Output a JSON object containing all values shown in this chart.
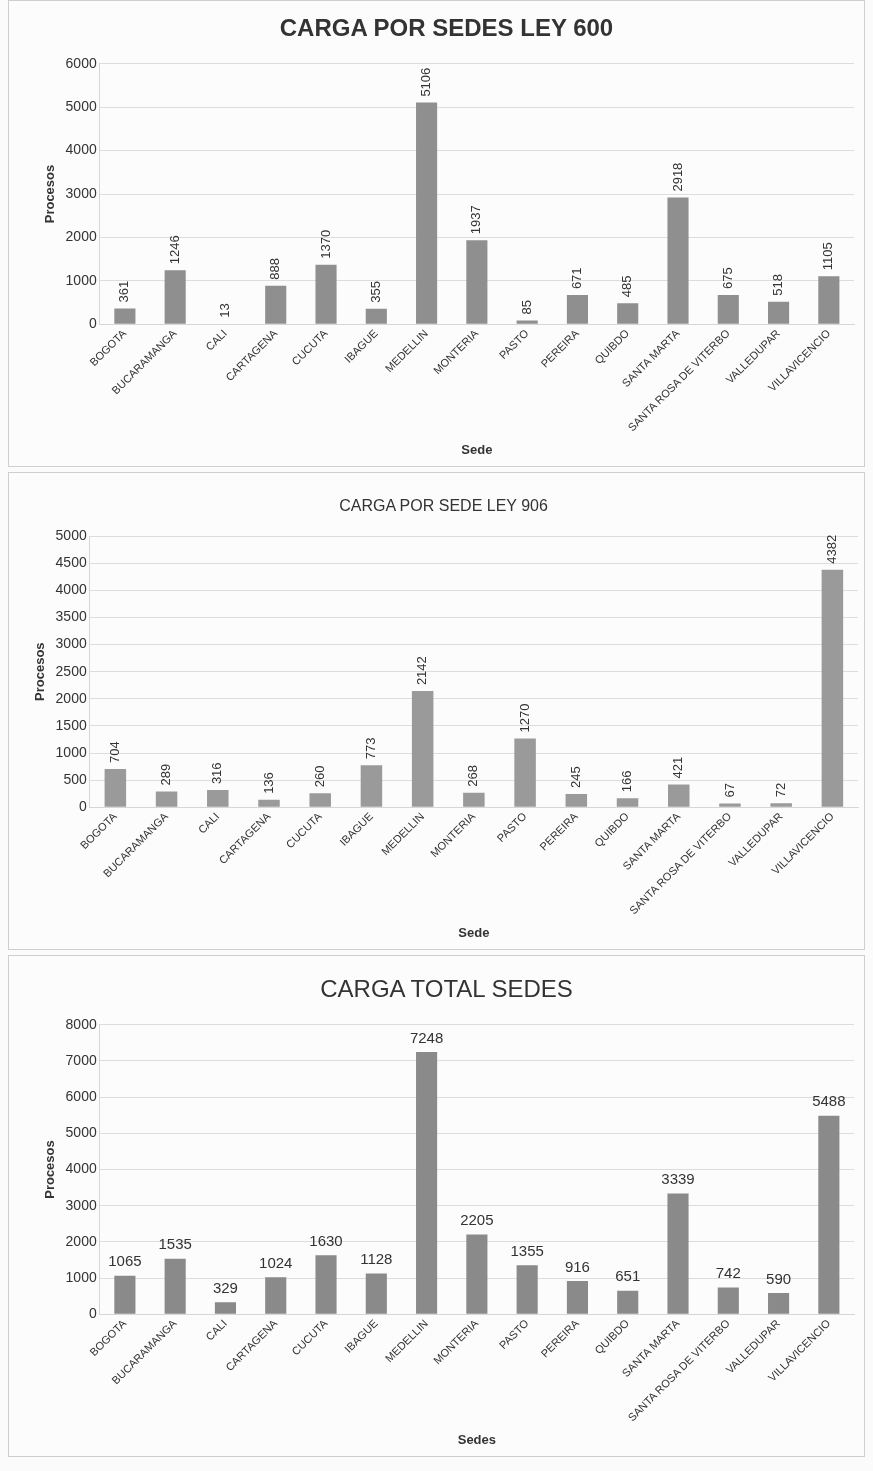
{
  "chart_data": [
    {
      "type": "bar",
      "title": "CARGA POR SEDES LEY 600",
      "xlabel": "Sede",
      "ylabel": "Procesos",
      "categories": [
        "BOGOTA",
        "BUCARAMANGA",
        "CALI",
        "CARTAGENA",
        "CUCUTA",
        "IBAGUE",
        "MEDELLIN",
        "MONTERIA",
        "PASTO",
        "PEREIRA",
        "QUIBDO",
        "SANTA MARTA",
        "SANTA ROSA DE VITERBO",
        "VALLEDUPAR",
        "VILLAVICENCIO"
      ],
      "values": [
        361,
        1246,
        13,
        888,
        1370,
        355,
        5106,
        1937,
        85,
        671,
        485,
        2918,
        675,
        518,
        1105
      ],
      "color": "#8f8f8f",
      "ylim": [
        0,
        6000
      ],
      "yticks": [
        0,
        1000,
        2000,
        3000,
        4000,
        5000,
        6000
      ],
      "grid": "y",
      "data_labels": true
    },
    {
      "type": "bar",
      "title": "CARGA POR SEDE LEY 906",
      "xlabel": "Sede",
      "ylabel": "Procesos",
      "categories": [
        "BOGOTA",
        "BUCARAMANGA",
        "CALI",
        "CARTAGENA",
        "CUCUTA",
        "IBAGUE",
        "MEDELLIN",
        "MONTERIA",
        "PASTO",
        "PEREIRA",
        "QUIBDO",
        "SANTA MARTA",
        "SANTA ROSA DE VITERBO",
        "VALLEDUPAR",
        "VILLAVICENCIO"
      ],
      "values": [
        704,
        289,
        316,
        136,
        260,
        773,
        2142,
        268,
        1270,
        245,
        166,
        421,
        67,
        72,
        4382
      ],
      "color": "#9a9a9a",
      "ylim": [
        0,
        5000
      ],
      "yticks": [
        0,
        500,
        1000,
        1500,
        2000,
        2500,
        3000,
        3500,
        4000,
        4500,
        5000
      ],
      "grid": "y",
      "data_labels": true
    },
    {
      "type": "bar",
      "title": "CARGA TOTAL SEDES",
      "xlabel": "Sedes",
      "ylabel": "Procesos",
      "categories": [
        "BOGOTA",
        "BUCARAMANGA",
        "CALI",
        "CARTAGENA",
        "CUCUTA",
        "IBAGUE",
        "MEDELLIN",
        "MONTERIA",
        "PASTO",
        "PEREIRA",
        "QUIBDO",
        "SANTA MARTA",
        "SANTA ROSA DE VITERBO",
        "VALLEDUPAR",
        "VILLAVICENCIO"
      ],
      "values": [
        1065,
        1535,
        329,
        1024,
        1630,
        1128,
        7248,
        2205,
        1355,
        916,
        651,
        3339,
        742,
        590,
        5488
      ],
      "color": "#8a8a8a",
      "ylim": [
        0,
        8000
      ],
      "yticks": [
        0,
        1000,
        2000,
        3000,
        4000,
        5000,
        6000,
        7000,
        8000
      ],
      "grid": "y",
      "data_labels": true
    }
  ]
}
